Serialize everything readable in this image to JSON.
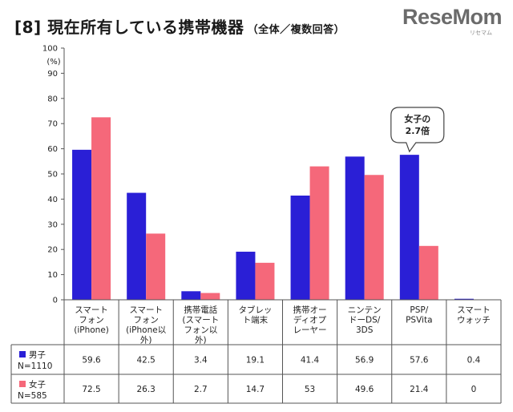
{
  "header": {
    "title": "[8] 現在所有している携帯機器",
    "subtitle": "（全体／複数回答）",
    "logo": "ReseMom",
    "logo_small": "リセマム"
  },
  "colors": {
    "male": "#2a1fd6",
    "female": "#f5687a",
    "grid": "#cfcfcf",
    "axis": "#555555"
  },
  "chart_data": {
    "type": "bar",
    "y_unit_label": "(%)",
    "ylim": [
      0,
      100
    ],
    "yticks": [
      0,
      10,
      20,
      30,
      40,
      50,
      60,
      70,
      80,
      90,
      100
    ],
    "grid": false,
    "categories": [
      [
        "スマート",
        "フォン",
        "(iPhone)"
      ],
      [
        "スマート",
        "フォン",
        "(iPhone以",
        "外)"
      ],
      [
        "携帯電話",
        "(スマート",
        "フォン以",
        "外)"
      ],
      [
        "タブレッ",
        "ト端末"
      ],
      [
        "携帯オー",
        "ディオプ",
        "レーヤー"
      ],
      [
        "ニンテン",
        "ドーDS/",
        "3DS"
      ],
      [
        "PSP/",
        "PSVita"
      ],
      [
        "スマート",
        "ウォッチ"
      ]
    ],
    "series": [
      {
        "name": "男子",
        "n_label": "N=1110",
        "values": [
          59.6,
          42.5,
          3.4,
          19.1,
          41.4,
          56.9,
          57.6,
          0.4
        ],
        "display": [
          "59.6",
          "42.5",
          "3.4",
          "19.1",
          "41.4",
          "56.9",
          "57.6",
          "0.4"
        ]
      },
      {
        "name": "女子",
        "n_label": "N=585",
        "values": [
          72.5,
          26.3,
          2.7,
          14.7,
          53,
          49.6,
          21.4,
          0
        ],
        "display": [
          "72.5",
          "26.3",
          "2.7",
          "14.7",
          "53",
          "49.6",
          "21.4",
          "0"
        ]
      }
    ],
    "annotation": {
      "lines": [
        "女子の",
        "2.7倍"
      ],
      "category_index": 6
    }
  }
}
